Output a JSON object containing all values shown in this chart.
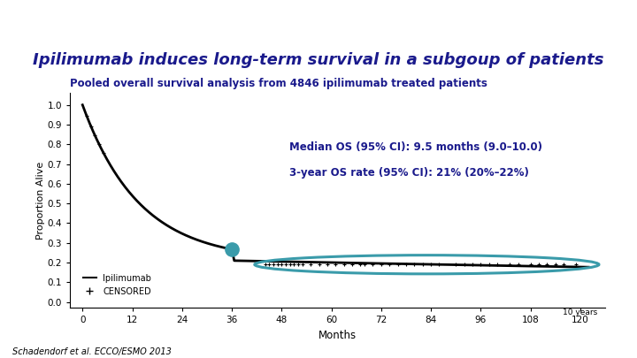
{
  "title": "Ipilimumab induces long-term survival in a subgoup of patients",
  "subtitle": "Pooled overall survival analysis from 4846 ipilimumab treated patients",
  "ylabel": "Proportion Alive",
  "xlabel": "Months",
  "annotation_line1": "Median OS (95% CI): 9.5 months (9.0–10.0)",
  "annotation_line2": "3-year OS rate (95% CI): 21% (20%–22%)",
  "footnote": "Schadendorf et al. ECCO/ESMO 2013",
  "x_ticks": [
    0,
    12,
    24,
    36,
    48,
    60,
    72,
    84,
    96,
    108,
    120
  ],
  "y_ticks": [
    0.0,
    0.1,
    0.2,
    0.3,
    0.4,
    0.5,
    0.6,
    0.7,
    0.8,
    0.9,
    1.0
  ],
  "xlim": [
    -3,
    126
  ],
  "ylim": [
    -0.03,
    1.06
  ],
  "title_color": "#1a1a8c",
  "subtitle_color": "#1a1a8c",
  "curve_color": "#000000",
  "ellipse_color": "#3A9BAA",
  "dot_color": "#3A9BAA",
  "stripe1_color": "#5DC8D8",
  "stripe2_color": "#1A7AAF",
  "bg_color": "#FFFFFF"
}
